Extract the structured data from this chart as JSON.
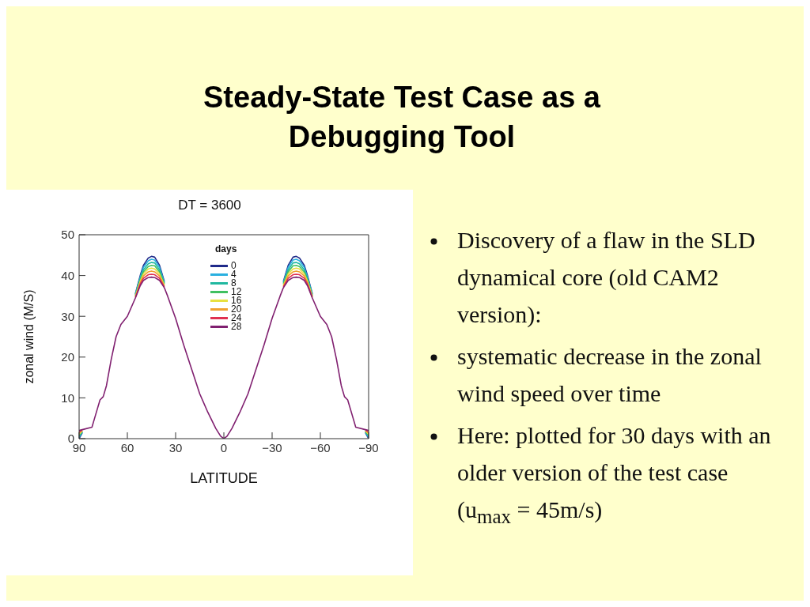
{
  "chart_data": {
    "type": "line",
    "title": "Steady-State Test Case as a Debugging Tool",
    "subtitle": "DT = 3600",
    "xlabel": "LATITUDE",
    "ylabel": "zonal wind (M/S)",
    "legend_title": "days",
    "legend": "top",
    "grid": false,
    "marker": "none",
    "line_style": "solid",
    "xlim": [
      90,
      -90
    ],
    "xticks": [
      90,
      60,
      30,
      0,
      -30,
      -60,
      -90
    ],
    "ylim": [
      0,
      50
    ],
    "yticks": [
      0,
      10,
      20,
      30,
      40,
      50
    ],
    "x": [
      90,
      88,
      82,
      80,
      77,
      75,
      73,
      70,
      67,
      64,
      60,
      55,
      52,
      50,
      47,
      45,
      43,
      40,
      37,
      35,
      30,
      25,
      20,
      15,
      10,
      5,
      2,
      0,
      -2,
      -5,
      -10,
      -15,
      -20,
      -25,
      -30,
      -35,
      -37,
      -40,
      -43,
      -45,
      -47,
      -50,
      -52,
      -55,
      -60,
      -64,
      -67,
      -70,
      -73,
      -75,
      -77,
      -80,
      -82,
      -88,
      -90
    ],
    "series": [
      {
        "name": "0",
        "color": "#1f2a8a",
        "values": [
          0,
          1.5,
          null,
          null,
          null,
          null,
          null,
          null,
          null,
          null,
          null,
          35.5,
          40,
          42.5,
          44.3,
          44.7,
          44.5,
          42.5,
          38.5,
          null,
          null,
          null,
          null,
          null,
          null,
          null,
          null,
          null,
          null,
          null,
          null,
          null,
          null,
          null,
          null,
          null,
          38.5,
          42.5,
          44.5,
          44.7,
          44.3,
          42.5,
          40,
          35.5,
          null,
          null,
          null,
          null,
          null,
          null,
          null,
          null,
          null,
          1.5,
          0
        ]
      },
      {
        "name": "4",
        "color": "#2ab0e0",
        "values": [
          0.3,
          1.6,
          null,
          null,
          null,
          null,
          null,
          null,
          null,
          null,
          null,
          35.4,
          39.6,
          42.0,
          43.6,
          44.0,
          43.8,
          42.0,
          38.3,
          null,
          null,
          null,
          null,
          null,
          null,
          null,
          null,
          null,
          null,
          null,
          null,
          null,
          null,
          null,
          null,
          null,
          38.3,
          42.0,
          43.8,
          44.0,
          43.6,
          42.0,
          39.6,
          35.4,
          null,
          null,
          null,
          null,
          null,
          null,
          null,
          null,
          null,
          1.6,
          0.3
        ]
      },
      {
        "name": "8",
        "color": "#20b8a0",
        "values": [
          0.6,
          1.7,
          null,
          null,
          null,
          null,
          null,
          null,
          null,
          null,
          null,
          35.2,
          39.3,
          41.4,
          42.9,
          43.2,
          43.1,
          41.4,
          38.1,
          null,
          null,
          null,
          null,
          null,
          null,
          null,
          null,
          null,
          null,
          null,
          null,
          null,
          null,
          null,
          null,
          null,
          38.1,
          41.4,
          43.1,
          43.2,
          42.9,
          41.4,
          39.3,
          35.2,
          null,
          null,
          null,
          null,
          null,
          null,
          null,
          null,
          null,
          1.7,
          0.6
        ]
      },
      {
        "name": "12",
        "color": "#40c060",
        "values": [
          0.9,
          1.8,
          null,
          null,
          null,
          null,
          null,
          null,
          null,
          null,
          null,
          35.1,
          38.9,
          40.9,
          42.2,
          42.5,
          42.4,
          40.9,
          37.9,
          null,
          null,
          null,
          null,
          null,
          null,
          null,
          null,
          null,
          null,
          null,
          null,
          null,
          null,
          null,
          null,
          null,
          37.9,
          40.9,
          42.4,
          42.5,
          42.2,
          40.9,
          38.9,
          35.1,
          null,
          null,
          null,
          null,
          null,
          null,
          null,
          null,
          null,
          1.8,
          0.9
        ]
      },
      {
        "name": "16",
        "color": "#e8e040",
        "values": [
          1.1,
          1.9,
          null,
          null,
          null,
          null,
          null,
          null,
          null,
          null,
          null,
          34.9,
          38.6,
          40.4,
          41.6,
          41.8,
          41.6,
          40.4,
          37.6,
          null,
          null,
          null,
          null,
          null,
          null,
          null,
          null,
          null,
          null,
          null,
          null,
          null,
          null,
          null,
          null,
          null,
          37.6,
          40.4,
          41.6,
          41.8,
          41.6,
          40.4,
          38.6,
          34.9,
          null,
          null,
          null,
          null,
          null,
          null,
          null,
          null,
          null,
          1.9,
          1.1
        ]
      },
      {
        "name": "20",
        "color": "#f0a030",
        "values": [
          1.4,
          2.0,
          null,
          null,
          null,
          null,
          null,
          null,
          null,
          null,
          null,
          34.8,
          38.2,
          39.9,
          40.9,
          41.1,
          40.9,
          39.9,
          37.4,
          null,
          null,
          null,
          null,
          null,
          null,
          null,
          null,
          null,
          null,
          null,
          null,
          null,
          null,
          null,
          null,
          null,
          37.4,
          39.9,
          40.9,
          41.1,
          40.9,
          39.9,
          38.2,
          34.8,
          null,
          null,
          null,
          null,
          null,
          null,
          null,
          null,
          null,
          2.0,
          1.4
        ]
      },
      {
        "name": "24",
        "color": "#e03050",
        "values": [
          1.7,
          2.1,
          null,
          null,
          null,
          null,
          null,
          null,
          null,
          null,
          null,
          34.6,
          37.9,
          39.3,
          40.2,
          40.3,
          40.2,
          39.3,
          37.2,
          null,
          null,
          null,
          null,
          null,
          null,
          null,
          null,
          null,
          null,
          null,
          null,
          null,
          null,
          null,
          null,
          null,
          37.2,
          39.3,
          40.2,
          40.3,
          40.2,
          39.3,
          37.9,
          34.6,
          null,
          null,
          null,
          null,
          null,
          null,
          null,
          null,
          null,
          2.1,
          1.7
        ]
      },
      {
        "name": "28",
        "color": "#802070",
        "values": [
          2,
          2.2,
          2.8,
          5.5,
          9.5,
          10.3,
          13,
          19.5,
          25,
          28,
          30,
          34.5,
          37.5,
          38.8,
          39.5,
          39.6,
          39.5,
          38.8,
          37,
          35,
          29.5,
          23,
          17,
          11,
          6.5,
          2.5,
          0.6,
          0,
          0.6,
          2.5,
          6.5,
          11,
          17,
          23,
          29.5,
          35,
          37,
          38.8,
          39.5,
          39.6,
          39.5,
          38.8,
          37.5,
          34.5,
          30,
          28,
          25,
          19.5,
          13,
          10.3,
          9.5,
          5.5,
          2.8,
          2.2,
          2
        ]
      }
    ],
    "annotations": [
      "Discovery of a flaw in the SLD dynamical core (old CAM2 version):",
      "systematic decrease in the zonal wind speed over time",
      "Here: plotted for 30 days with an older version of the test case (u$_{max}$ = 45m/s)"
    ]
  }
}
